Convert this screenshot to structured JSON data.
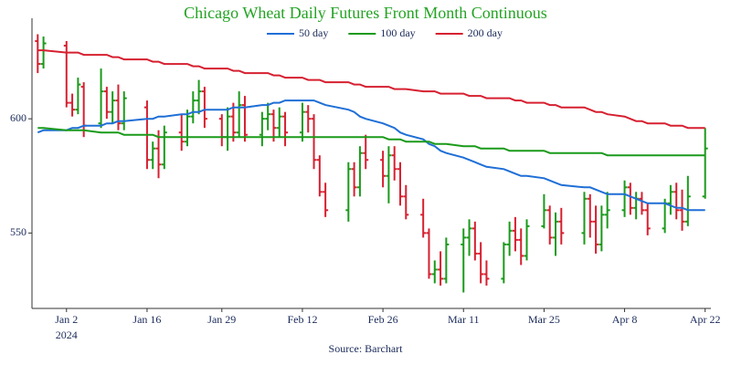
{
  "chart_data": {
    "type": "ohlc",
    "title": "Chicago Wheat Daily Futures Front Month Continuous",
    "x": [
      "2023-12-28",
      "2023-12-29",
      "2024-01-02",
      "2024-01-03",
      "2024-01-04",
      "2024-01-05",
      "2024-01-08",
      "2024-01-09",
      "2024-01-10",
      "2024-01-11",
      "2024-01-12",
      "2024-01-16",
      "2024-01-17",
      "2024-01-18",
      "2024-01-19",
      "2024-01-22",
      "2024-01-23",
      "2024-01-24",
      "2024-01-25",
      "2024-01-26",
      "2024-01-29",
      "2024-01-30",
      "2024-01-31",
      "2024-02-01",
      "2024-02-02",
      "2024-02-05",
      "2024-02-06",
      "2024-02-07",
      "2024-02-08",
      "2024-02-09",
      "2024-02-12",
      "2024-02-13",
      "2024-02-14",
      "2024-02-15",
      "2024-02-16",
      "2024-02-20",
      "2024-02-21",
      "2024-02-22",
      "2024-02-23",
      "2024-02-26",
      "2024-02-27",
      "2024-02-28",
      "2024-02-29",
      "2024-03-01",
      "2024-03-04",
      "2024-03-05",
      "2024-03-06",
      "2024-03-07",
      "2024-03-08",
      "2024-03-11",
      "2024-03-12",
      "2024-03-13",
      "2024-03-14",
      "2024-03-15",
      "2024-03-18",
      "2024-03-19",
      "2024-03-20",
      "2024-03-21",
      "2024-03-22",
      "2024-03-25",
      "2024-03-26",
      "2024-03-27",
      "2024-03-28",
      "2024-04-01",
      "2024-04-02",
      "2024-04-03",
      "2024-04-04",
      "2024-04-05",
      "2024-04-08",
      "2024-04-09",
      "2024-04-10",
      "2024-04-11",
      "2024-04-12",
      "2024-04-15",
      "2024-04-16",
      "2024-04-17",
      "2024-04-18",
      "2024-04-19",
      "2024-04-22"
    ],
    "open": [
      634,
      624,
      632,
      607,
      604,
      614,
      598,
      612,
      603,
      608,
      598,
      605,
      582,
      587,
      580,
      594,
      590,
      601,
      608,
      612,
      600,
      592,
      601,
      594,
      606,
      593,
      600,
      602,
      596,
      601,
      594,
      603,
      600,
      582,
      568,
      560,
      578,
      570,
      585,
      582,
      575,
      584,
      578,
      566,
      558,
      550,
      532,
      534,
      530,
      545,
      548,
      552,
      541,
      532,
      530,
      545,
      551,
      547,
      540,
      553,
      560,
      548,
      555,
      550,
      565,
      555,
      545,
      558,
      560,
      570,
      561,
      565,
      560,
      552,
      563,
      568,
      560,
      555,
      566
    ],
    "high": [
      637,
      636,
      634,
      611,
      618,
      616,
      622,
      614,
      612,
      615,
      612,
      608,
      590,
      595,
      597,
      602,
      604,
      612,
      617,
      614,
      602,
      605,
      607,
      612,
      610,
      603,
      607,
      604,
      605,
      603,
      607,
      606,
      602,
      584,
      572,
      581,
      581,
      588,
      593,
      586,
      588,
      588,
      581,
      571,
      565,
      552,
      538,
      542,
      548,
      552,
      556,
      555,
      546,
      538,
      546,
      555,
      557,
      552,
      556,
      567,
      562,
      559,
      561,
      568,
      567,
      562,
      562,
      568,
      573,
      572,
      568,
      568,
      563,
      565,
      571,
      572,
      569,
      575,
      596
    ],
    "low": [
      620,
      622,
      605,
      601,
      602,
      592,
      596,
      600,
      598,
      595,
      595,
      578,
      578,
      574,
      578,
      586,
      588,
      598,
      602,
      596,
      588,
      586,
      590,
      592,
      590,
      588,
      595,
      590,
      592,
      588,
      590,
      594,
      578,
      566,
      557,
      555,
      566,
      566,
      578,
      570,
      563,
      573,
      562,
      556,
      548,
      530,
      528,
      527,
      528,
      524,
      540,
      538,
      528,
      527,
      528,
      540,
      542,
      536,
      538,
      552,
      545,
      540,
      545,
      545,
      548,
      541,
      542,
      552,
      557,
      558,
      556,
      558,
      549,
      550,
      558,
      556,
      551,
      553,
      565
    ],
    "close": [
      624,
      633,
      607,
      604,
      615,
      597,
      612,
      603,
      608,
      598,
      609,
      582,
      587,
      580,
      594,
      590,
      601,
      608,
      612,
      600,
      592,
      601,
      594,
      606,
      593,
      600,
      602,
      596,
      601,
      594,
      603,
      600,
      582,
      568,
      560,
      578,
      570,
      585,
      582,
      575,
      584,
      578,
      566,
      558,
      550,
      532,
      534,
      530,
      545,
      548,
      552,
      541,
      532,
      530,
      545,
      551,
      547,
      540,
      553,
      560,
      548,
      555,
      550,
      565,
      555,
      545,
      558,
      560,
      570,
      561,
      565,
      560,
      552,
      563,
      568,
      560,
      555,
      566,
      587
    ],
    "up_color": "#1a9a1a",
    "down_color": "#d62030",
    "series": [
      {
        "name": "50 day",
        "color": "#1f6fd6",
        "values": [
          594,
          595,
          595,
          596,
          596,
          597,
          597,
          598,
          598,
          599,
          599,
          600,
          600,
          601,
          601,
          602,
          602,
          603,
          603,
          604,
          604,
          604,
          605,
          605,
          605,
          606,
          606,
          607,
          607,
          608,
          608,
          608,
          608,
          607,
          606,
          604,
          603,
          601,
          600,
          598,
          597,
          596,
          594,
          593,
          591,
          589,
          588,
          586,
          585,
          583,
          582,
          581,
          580,
          579,
          578,
          577,
          576,
          575,
          575,
          574,
          573,
          572,
          571,
          570,
          570,
          569,
          568,
          567,
          567,
          566,
          565,
          564,
          563,
          563,
          562,
          561,
          561,
          560,
          560
        ]
      },
      {
        "name": "100 day",
        "color": "#1a9a1a",
        "values": [
          596,
          596,
          595,
          595,
          595,
          595,
          594,
          594,
          594,
          594,
          593,
          593,
          593,
          592,
          592,
          592,
          592,
          592,
          592,
          592,
          592,
          592,
          592,
          592,
          592,
          592,
          592,
          592,
          592,
          592,
          592,
          592,
          592,
          592,
          592,
          592,
          592,
          592,
          592,
          592,
          591,
          591,
          591,
          590,
          590,
          590,
          589,
          589,
          589,
          588,
          588,
          588,
          587,
          587,
          587,
          586,
          586,
          586,
          586,
          586,
          585,
          585,
          585,
          585,
          585,
          585,
          585,
          584,
          584,
          584,
          584,
          584,
          584,
          584,
          584,
          584,
          584,
          584,
          584
        ]
      },
      {
        "name": "200 day",
        "color": "#d62030",
        "values": [
          630,
          630,
          629,
          629,
          629,
          628,
          628,
          628,
          627,
          627,
          626,
          626,
          625,
          625,
          624,
          624,
          624,
          623,
          623,
          622,
          622,
          622,
          621,
          621,
          620,
          620,
          620,
          619,
          619,
          618,
          618,
          617,
          617,
          617,
          616,
          616,
          615,
          615,
          614,
          614,
          614,
          613,
          613,
          613,
          612,
          612,
          612,
          611,
          611,
          611,
          610,
          610,
          610,
          609,
          609,
          609,
          608,
          608,
          607,
          607,
          606,
          606,
          605,
          605,
          604,
          603,
          603,
          602,
          601,
          600,
          599,
          599,
          598,
          598,
          597,
          597,
          597,
          596,
          596
        ]
      }
    ],
    "xlim": [
      "2023-12-27",
      "2024-04-23"
    ],
    "xticks": [
      {
        "value": "2024-01-02",
        "label": "Jan 2"
      },
      {
        "value": "2024-01-16",
        "label": "Jan 16"
      },
      {
        "value": "2024-01-29",
        "label": "Jan 29"
      },
      {
        "value": "2024-02-12",
        "label": "Feb 12"
      },
      {
        "value": "2024-02-26",
        "label": "Feb 26"
      },
      {
        "value": "2024-03-11",
        "label": "Mar 11"
      },
      {
        "value": "2024-03-25",
        "label": "Mar 25"
      },
      {
        "value": "2024-04-08",
        "label": "Apr 8"
      },
      {
        "value": "2024-04-22",
        "label": "Apr 22"
      }
    ],
    "year_label": "2024",
    "ylim": [
      517,
      644
    ],
    "yticks": [
      550,
      600
    ],
    "source": "Source: Barchart"
  }
}
